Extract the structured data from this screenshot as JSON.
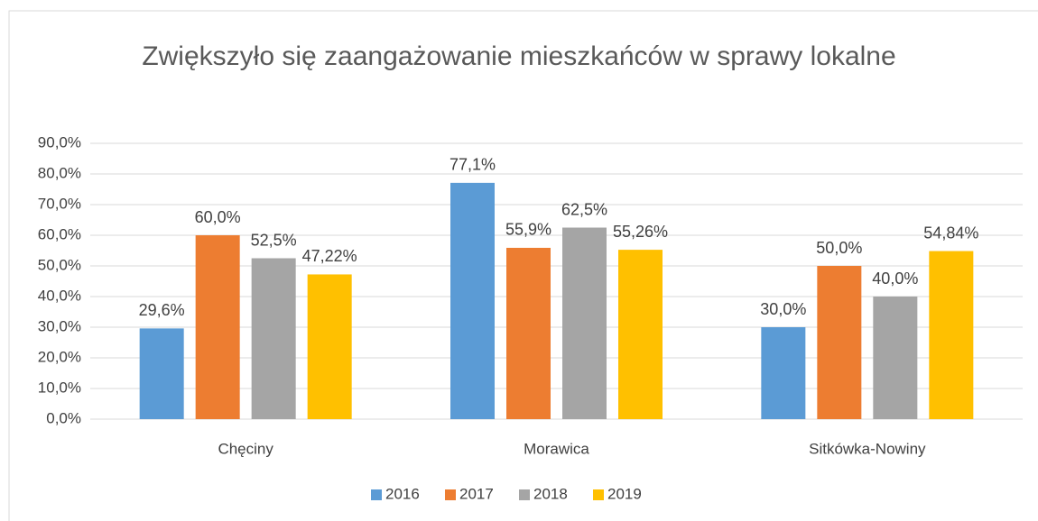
{
  "chart_data": {
    "type": "bar",
    "title": "Zwiększyło się zaangażowanie mieszkańców w sprawy lokalne",
    "categories": [
      "Chęciny",
      "Morawica",
      "Sitkówka-Nowiny"
    ],
    "series": [
      {
        "name": "2016",
        "color": "#5b9bd5",
        "values": [
          29.6,
          77.1,
          30.0
        ],
        "value_labels": [
          "29,6%",
          "77,1%",
          "30,0%"
        ]
      },
      {
        "name": "2017",
        "color": "#ed7d31",
        "values": [
          60.0,
          55.9,
          50.0
        ],
        "value_labels": [
          "60,0%",
          "55,9%",
          "50,0%"
        ]
      },
      {
        "name": "2018",
        "color": "#a5a5a5",
        "values": [
          52.5,
          62.5,
          40.0
        ],
        "value_labels": [
          "52,5%",
          "62,5%",
          "40,0%"
        ]
      },
      {
        "name": "2019",
        "color": "#ffc000",
        "values": [
          47.22,
          55.26,
          54.84
        ],
        "value_labels": [
          "47,22%",
          "55,26%",
          "54,84%"
        ]
      }
    ],
    "ylim": [
      0,
      90
    ],
    "yticks": [
      {
        "value": 0,
        "label": "0,0%"
      },
      {
        "value": 10,
        "label": "10,0%"
      },
      {
        "value": 20,
        "label": "20,0%"
      },
      {
        "value": 30,
        "label": "30,0%"
      },
      {
        "value": 40,
        "label": "40,0%"
      },
      {
        "value": 50,
        "label": "50,0%"
      },
      {
        "value": 60,
        "label": "60,0%"
      },
      {
        "value": 70,
        "label": "70,0%"
      },
      {
        "value": 80,
        "label": "80,0%"
      },
      {
        "value": 90,
        "label": "90,0%"
      }
    ],
    "grid": true,
    "legend": "bottom"
  }
}
